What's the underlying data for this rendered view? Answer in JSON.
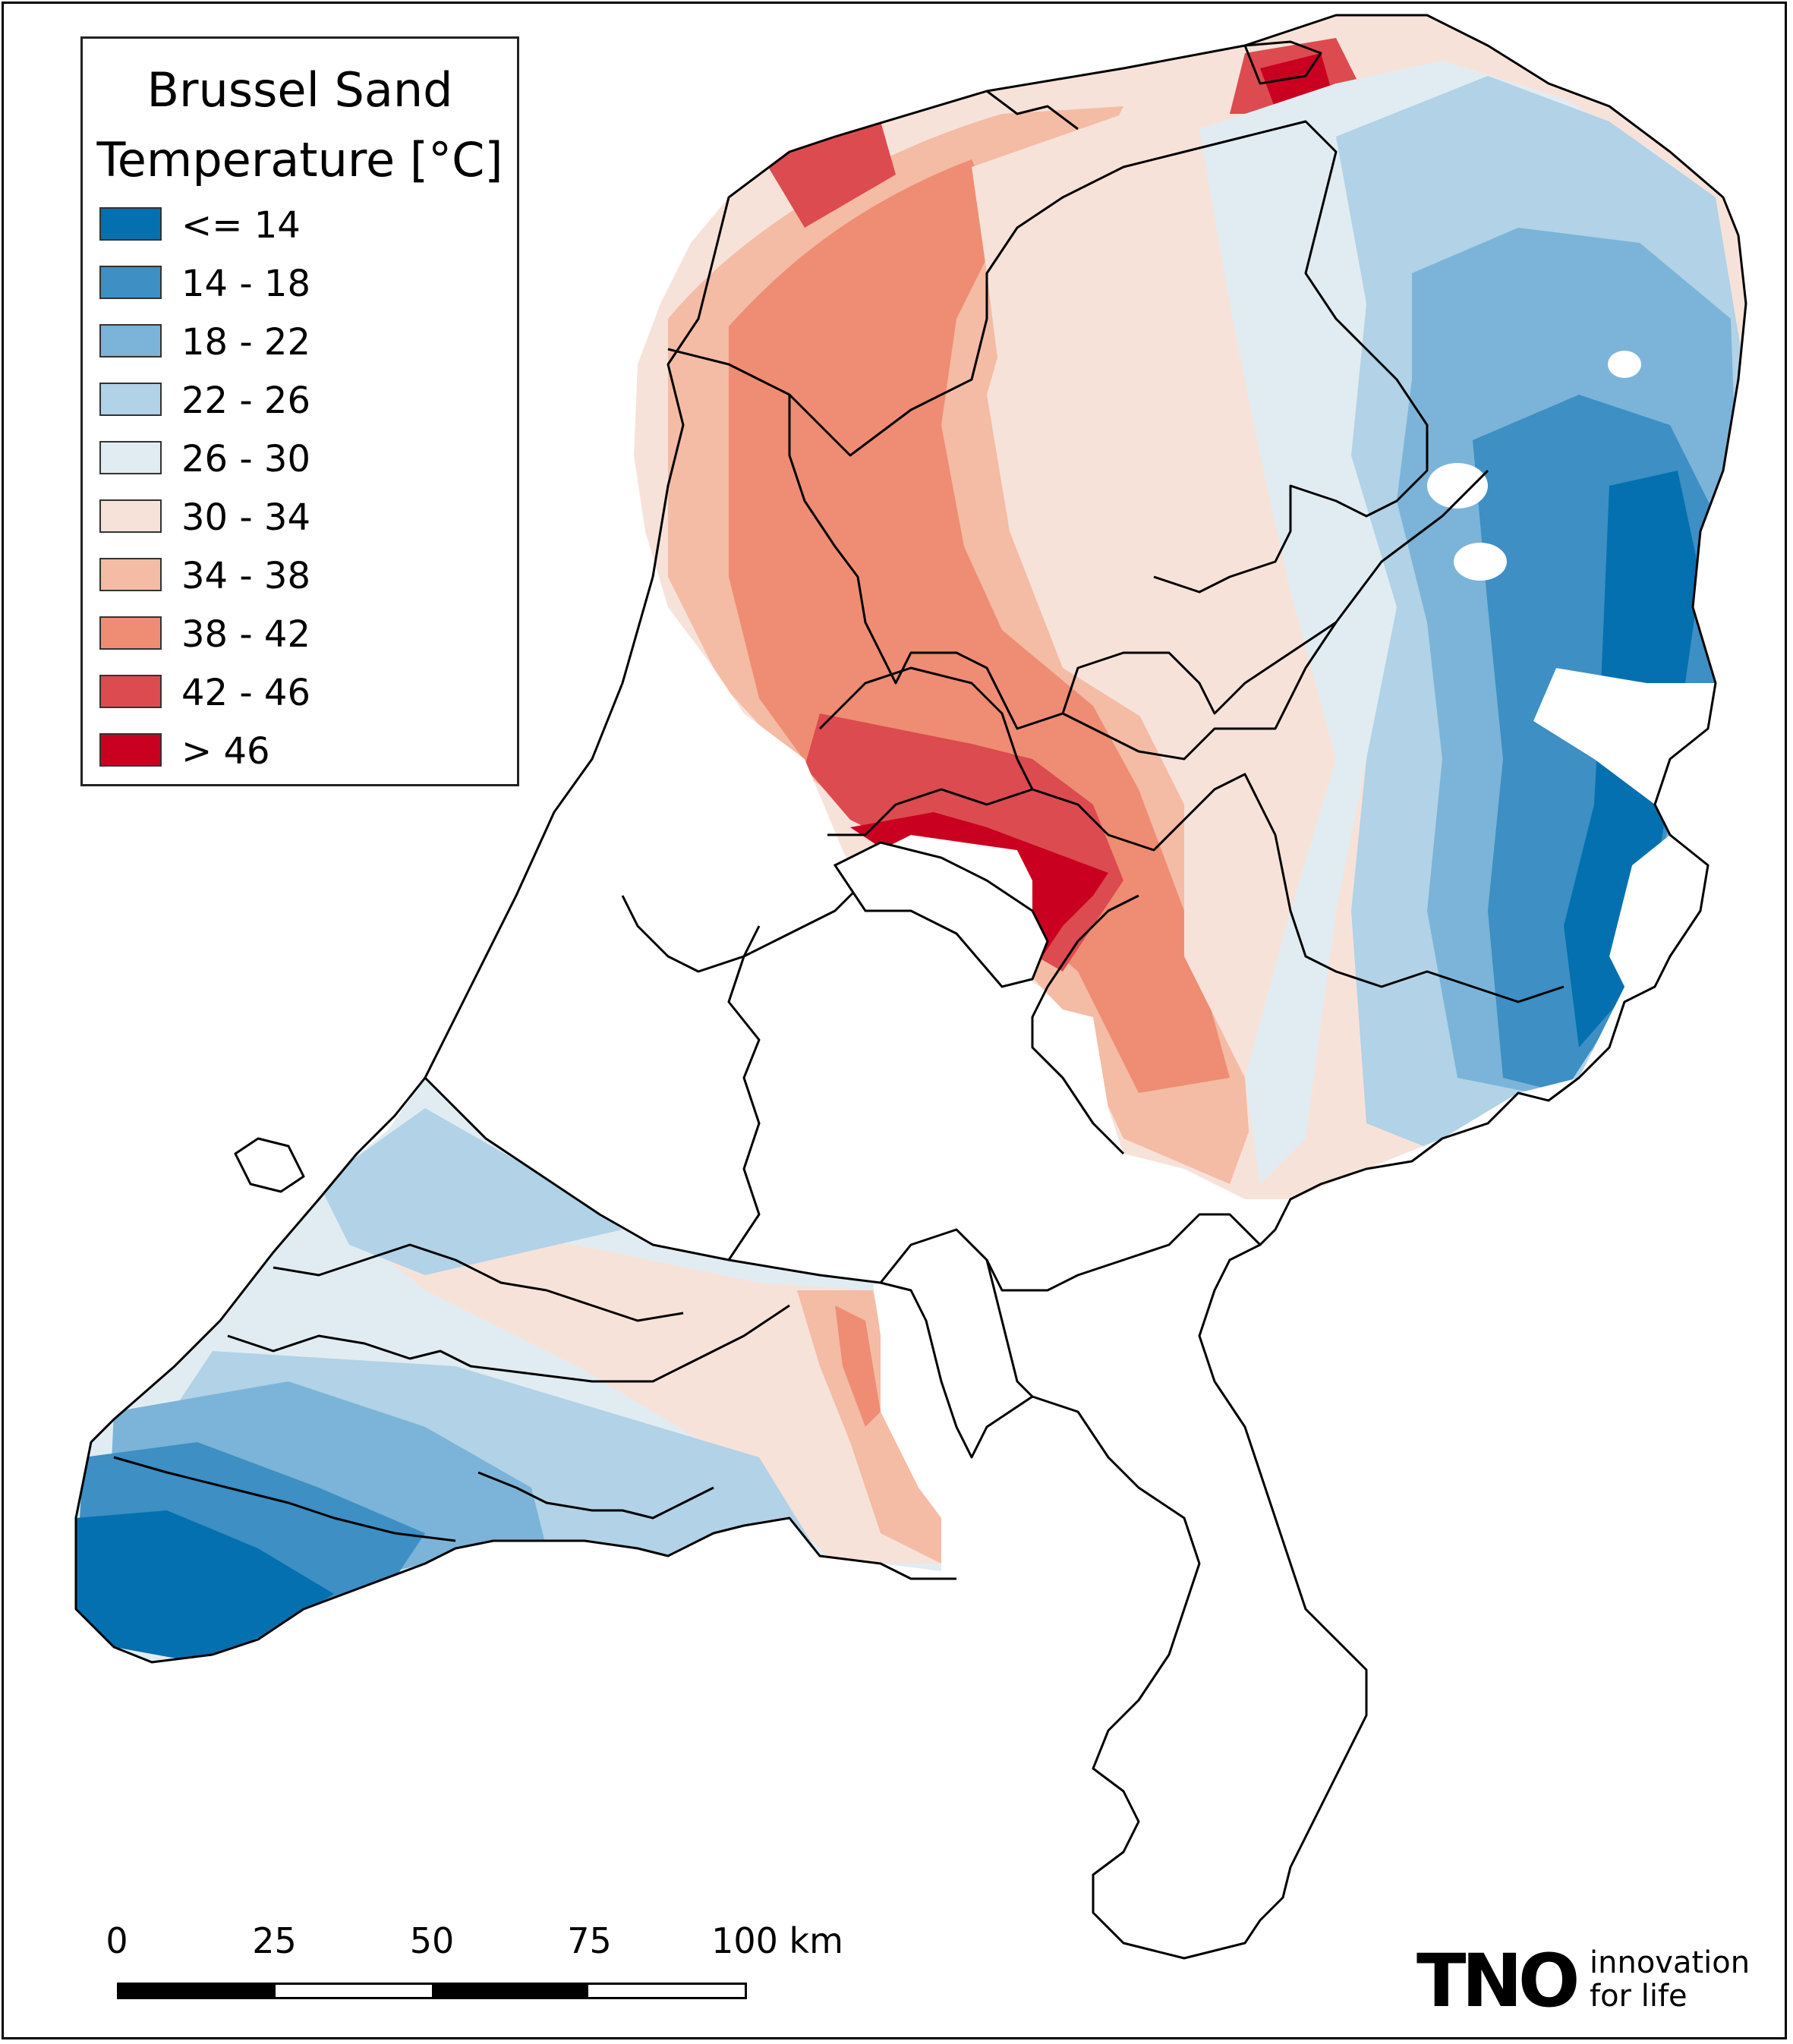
{
  "legend": {
    "title_line1": "Brussel Sand",
    "title_line2": "Temperature [°C]",
    "classes": [
      {
        "label": "<= 14",
        "color": "#0570b0"
      },
      {
        "label": "14 - 18",
        "color": "#3d8fc4"
      },
      {
        "label": "18 - 22",
        "color": "#7bb4d8"
      },
      {
        "label": "22 - 26",
        "color": "#b1d2e7"
      },
      {
        "label": "26 - 30",
        "color": "#e1ecf2"
      },
      {
        "label": "30 - 34",
        "color": "#f7e2da"
      },
      {
        "label": "34 - 38",
        "color": "#f4bba5"
      },
      {
        "label": "38 - 42",
        "color": "#ee8d73"
      },
      {
        "label": "42 - 46",
        "color": "#dc4b50"
      },
      {
        "label": "> 46",
        "color": "#ca0020"
      }
    ]
  },
  "scalebar": {
    "ticks": [
      "0",
      "25",
      "50",
      "75",
      "100 km"
    ],
    "segment_colors": [
      "#000000",
      "#ffffff",
      "#000000",
      "#ffffff"
    ]
  },
  "logo": {
    "mark": "TNO",
    "tagline_line1": "innovation",
    "tagline_line2": "for life"
  }
}
